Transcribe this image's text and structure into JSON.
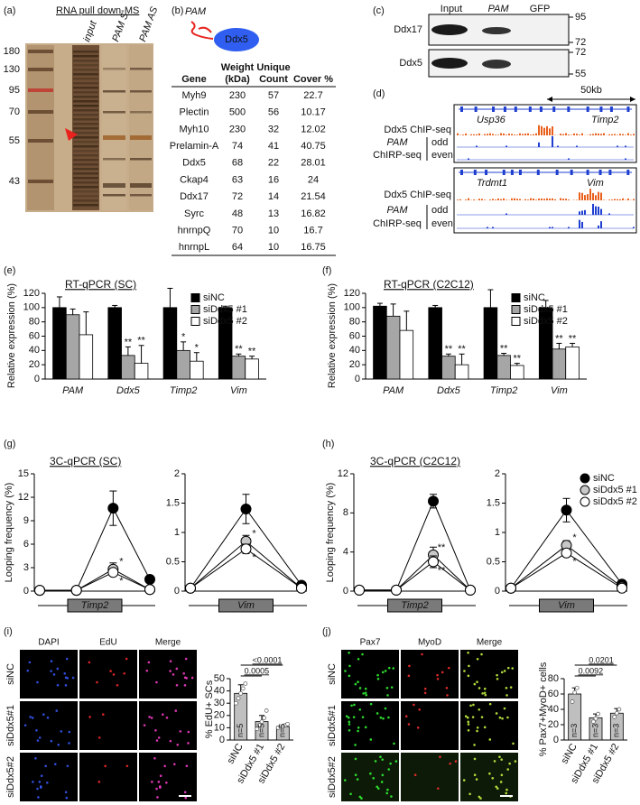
{
  "gel": {
    "label": "(a)",
    "title": "RNA pull down-MS",
    "lanes": [
      "input",
      "PAM S",
      "PAM AS"
    ],
    "markers": [
      180,
      130,
      95,
      70,
      55,
      43
    ]
  },
  "ms_table": {
    "label": "(b)",
    "diagram": {
      "rna": "PAM",
      "protein": "Ddx5"
    },
    "header": [
      [
        "Gene"
      ],
      [
        "Weight",
        "(kDa)"
      ],
      [
        "Unique",
        "Count"
      ],
      [
        "Cover %"
      ]
    ],
    "rows": [
      [
        "Myh9",
        230,
        57,
        22.7
      ],
      [
        "Plectin",
        500,
        56,
        10.17
      ],
      [
        "Myh10",
        230,
        32,
        12.02
      ],
      [
        "Prelamin-A",
        74,
        41,
        40.75
      ],
      [
        "Ddx5",
        68,
        22,
        28.01
      ],
      [
        "Ckap4",
        63,
        16,
        24
      ],
      [
        "Ddx17",
        72,
        14,
        21.54
      ],
      [
        "Syrc",
        48,
        13,
        16.82
      ],
      [
        "hnrnpQ",
        70,
        10,
        16.7
      ],
      [
        "hnrnpL",
        64,
        10,
        16.75
      ]
    ],
    "highlight": {
      "row": 4,
      "color": "#e8231e"
    }
  },
  "western": {
    "label": "(c)",
    "columns": [
      "Input",
      "PAM",
      "GFP"
    ],
    "rows": [
      {
        "name": "Ddx17",
        "markers": [
          95,
          72
        ]
      },
      {
        "name": "Ddx5",
        "markers": [
          72,
          55
        ]
      }
    ]
  },
  "tracks": {
    "label": "(d)",
    "scale": "50kb",
    "loci": [
      {
        "genes": [
          "Usp36",
          "Timp2"
        ],
        "chip": "Ddx5 ChIP-seq",
        "chirp": [
          "PAM",
          "ChIRP-seq"
        ],
        "odd": "odd",
        "even": "even"
      },
      {
        "genes": [
          "Trdmt1",
          "Vim"
        ],
        "chip": "Ddx5 ChIP-seq",
        "chirp": [
          "PAM",
          "ChIRP-seq"
        ],
        "odd": "odd",
        "even": "even"
      }
    ]
  },
  "images": [
    {
      "label": "(i)",
      "columns": [
        "DAPI",
        "EdU",
        "Merge"
      ],
      "rows": [
        "siNC",
        "siDdx5#1",
        "siDdx5#2"
      ]
    },
    {
      "label": "(j)",
      "columns": [
        "Pax7",
        "MyoD",
        "Merge"
      ],
      "rows": [
        "siNC",
        "siDdx5#1",
        "siDdx5#2"
      ]
    }
  ],
  "chart_data": [
    {
      "type": "bar",
      "panel": "(e)",
      "title": "RT-qPCR (SC)",
      "ylabel": "Relative expression (%)",
      "categories": [
        "PAM",
        "Ddx5",
        "Timp2",
        "Vim"
      ],
      "ylim": [
        0,
        120
      ],
      "yticks": [
        0,
        20,
        40,
        60,
        80,
        100,
        120
      ],
      "legend": "upper right",
      "series": [
        {
          "name": "siNC",
          "color": "#000000",
          "values": [
            100,
            100,
            100,
            100
          ],
          "errors": [
            15,
            3,
            27,
            2
          ]
        },
        {
          "name": "siDdx5 #1",
          "color": "#a6a6a6",
          "values": [
            90,
            33,
            40,
            32
          ],
          "errors": [
            8,
            12,
            12,
            3
          ],
          "significance": [
            null,
            "**",
            "*",
            "**"
          ]
        },
        {
          "name": "siDdx5 #2",
          "color": "#ffffff",
          "values": [
            62,
            22,
            25,
            28
          ],
          "errors": [
            32,
            25,
            12,
            4
          ],
          "significance": [
            null,
            "**",
            "*",
            "**"
          ]
        }
      ]
    },
    {
      "type": "bar",
      "panel": "(f)",
      "title": "RT-qPCR (C2C12)",
      "ylabel": "Relative expression (%)",
      "categories": [
        "PAM",
        "Ddx5",
        "Timp2",
        "Vim"
      ],
      "ylim": [
        0,
        120
      ],
      "yticks": [
        0,
        20,
        40,
        60,
        80,
        100,
        120
      ],
      "legend": "upper right",
      "series": [
        {
          "name": "siNC",
          "color": "#000000",
          "values": [
            102,
            100,
            100,
            100
          ],
          "errors": [
            4,
            3,
            25,
            10
          ]
        },
        {
          "name": "siDdx5 #1",
          "color": "#a6a6a6",
          "values": [
            88,
            32,
            33,
            42
          ],
          "errors": [
            17,
            3,
            3,
            8
          ],
          "significance": [
            null,
            "**",
            "**",
            "**"
          ]
        },
        {
          "name": "siDdx5 #2",
          "color": "#ffffff",
          "values": [
            68,
            20,
            19,
            45
          ],
          "errors": [
            27,
            15,
            3,
            5
          ],
          "significance": [
            null,
            "**",
            "**",
            "**"
          ]
        }
      ]
    },
    {
      "type": "line",
      "panel": "(g)",
      "title": "3C-qPCR (SC)",
      "ylabel": "Looping frequency (%)",
      "gene": "Timp2",
      "categories": [
        null,
        null,
        null,
        null
      ],
      "ylim": [
        0,
        15
      ],
      "yticks": [
        0,
        3,
        6,
        9,
        12,
        15
      ],
      "series": [
        {
          "color": "#000000",
          "values": [
            0.1,
            0.1,
            10.6,
            1.5
          ],
          "errors": [
            null,
            null,
            2.2,
            null
          ]
        },
        {
          "color": "#c8c8c8",
          "values": [
            0.1,
            0.1,
            2.8,
            0.2
          ],
          "errors": [
            null,
            null,
            0.8,
            null
          ],
          "significance": [
            null,
            null,
            "*",
            null
          ]
        },
        {
          "color": "#ffffff",
          "values": [
            0.1,
            0.1,
            2.4,
            0.2
          ],
          "errors": [
            null,
            null,
            0.4,
            null
          ],
          "significance": [
            null,
            null,
            "*",
            null
          ]
        }
      ]
    },
    {
      "type": "line",
      "gene": "Vim",
      "categories": [
        null,
        null,
        null
      ],
      "ylim": [
        0,
        2
      ],
      "yticks": [
        0,
        0.5,
        1,
        1.5,
        2
      ],
      "series": [
        {
          "color": "#000000",
          "values": [
            0.05,
            1.4,
            0.1
          ],
          "errors": [
            null,
            0.25,
            null
          ]
        },
        {
          "color": "#c8c8c8",
          "values": [
            0.05,
            0.85,
            0.05
          ],
          "errors": [
            null,
            0.1,
            null
          ],
          "significance": [
            null,
            "*",
            null
          ]
        },
        {
          "color": "#ffffff",
          "values": [
            0.05,
            0.72,
            0.05
          ],
          "errors": [
            null,
            0.08,
            null
          ],
          "significance": [
            null,
            "*",
            null
          ]
        }
      ]
    },
    {
      "type": "line",
      "panel": "(h)",
      "title": "3C-qPCR (C2C12)",
      "ylabel": "Looping frequency (%)",
      "gene": "Timp2",
      "categories": [
        null,
        null,
        null,
        null
      ],
      "ylim": [
        0,
        12
      ],
      "yticks": [
        0,
        4,
        8,
        12
      ],
      "series": [
        {
          "color": "#000000",
          "values": [
            0.1,
            0.1,
            9.2,
            0.1
          ],
          "errors": [
            null,
            null,
            0.7,
            null
          ]
        },
        {
          "color": "#c8c8c8",
          "values": [
            0.1,
            0.1,
            3.7,
            0.1
          ],
          "errors": [
            null,
            null,
            0.8,
            null
          ],
          "significance": [
            null,
            null,
            "**",
            null
          ]
        },
        {
          "color": "#ffffff",
          "values": [
            0.1,
            0.1,
            3.0,
            0.1
          ],
          "errors": [
            null,
            null,
            0.6,
            null
          ],
          "significance": [
            null,
            null,
            "**",
            null
          ]
        }
      ]
    },
    {
      "type": "line",
      "gene": "Vim",
      "categories": [
        null,
        null,
        null
      ],
      "ylim": [
        0,
        2
      ],
      "yticks": [
        0,
        0.5,
        1,
        1.5,
        2
      ],
      "legend": "upper right",
      "series": [
        {
          "name": "siNC",
          "color": "#000000",
          "values": [
            0.05,
            1.38,
            0.12
          ],
          "errors": [
            null,
            0.2,
            null
          ]
        },
        {
          "name": "siDdx5 #1",
          "color": "#c8c8c8",
          "values": [
            0.05,
            0.78,
            0.07
          ],
          "errors": [
            null,
            0.08,
            null
          ],
          "significance": [
            null,
            "*",
            null
          ]
        },
        {
          "name": "siDdx5 #2",
          "color": "#ffffff",
          "values": [
            0.05,
            0.65,
            0.05
          ],
          "errors": [
            null,
            0.06,
            null
          ],
          "significance": [
            null,
            "*",
            null
          ]
        }
      ]
    },
    {
      "type": "bar",
      "ylabel": "% EdU+ SCs",
      "categories": [
        "siNC",
        "siDdx5 #1",
        "siDdx5 #2"
      ],
      "ylim": [
        0,
        50
      ],
      "yticks": [
        0,
        10,
        20,
        30,
        40,
        50
      ],
      "color": "#bfbfbf",
      "values": [
        38,
        15,
        11
      ],
      "errors": [
        7,
        5,
        1
      ],
      "n_labels": [
        "n=5",
        "n=5",
        "n=5"
      ],
      "p_values": [
        null,
        "0.0005",
        "<0.0001"
      ],
      "points": [
        [
          30,
          34,
          38,
          42,
          46
        ],
        [
          9,
          12,
          15,
          18,
          24
        ],
        [
          10,
          11,
          11,
          12,
          13
        ]
      ]
    },
    {
      "type": "bar",
      "ylabel": "% Pax7+MyoD+ cells",
      "categories": [
        "siNC",
        "siDdx5 #1",
        "siDdx5 #2"
      ],
      "ylim": [
        0,
        80
      ],
      "yticks": [
        0,
        20,
        40,
        60,
        80
      ],
      "color": "#bfbfbf",
      "values": [
        60,
        29,
        35
      ],
      "errors": [
        8,
        5,
        6
      ],
      "n_labels": [
        "n=3",
        "n=3",
        "n=3"
      ],
      "p_values": [
        null,
        "0.0092",
        "0.0201"
      ],
      "points": [
        [
          50,
          62,
          68
        ],
        [
          24,
          28,
          34
        ],
        [
          30,
          35,
          40
        ]
      ]
    }
  ]
}
